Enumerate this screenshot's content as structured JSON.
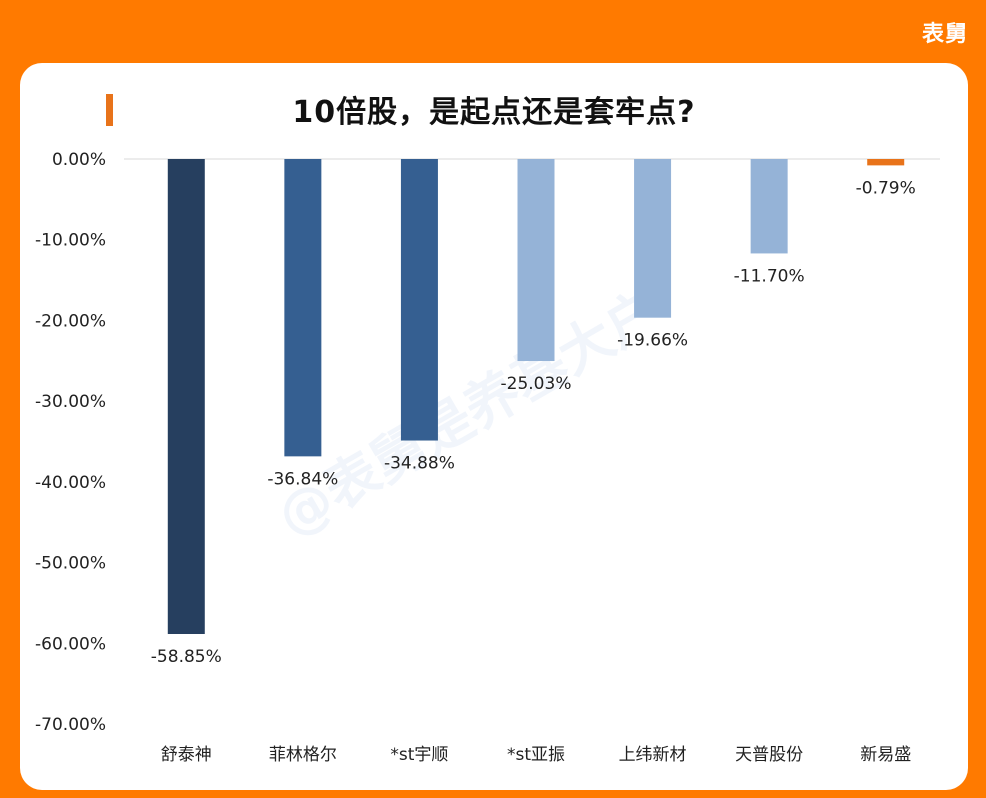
{
  "brand": "表舅",
  "watermark": "@表舅是养基大户",
  "chart_data": {
    "type": "bar",
    "title": "10倍股，是起点还是套牢点?",
    "categories": [
      "舒泰神",
      "菲林格尔",
      "*st宇顺",
      "*st亚振",
      "上纬新材",
      "天普股份",
      "新易盛"
    ],
    "values": [
      -58.85,
      -36.84,
      -34.88,
      -25.03,
      -19.66,
      -11.7,
      -0.79
    ],
    "data_labels": [
      "-58.85%",
      "-36.84%",
      "-34.88%",
      "-25.03%",
      "-19.66%",
      "-11.70%",
      "-0.79%"
    ],
    "colors": [
      "#263f5f",
      "#355f91",
      "#355f91",
      "#95b3d7",
      "#95b3d7",
      "#95b3d7",
      "#e8731a"
    ],
    "ylim": [
      -70,
      0
    ],
    "yticks": [
      0,
      -10,
      -20,
      -30,
      -40,
      -50,
      -60,
      -70
    ],
    "ytick_labels": [
      "0.00%",
      "-10.00%",
      "-20.00%",
      "-30.00%",
      "-40.00%",
      "-50.00%",
      "-60.00%",
      "-70.00%"
    ],
    "xlabel": "",
    "ylabel": ""
  }
}
